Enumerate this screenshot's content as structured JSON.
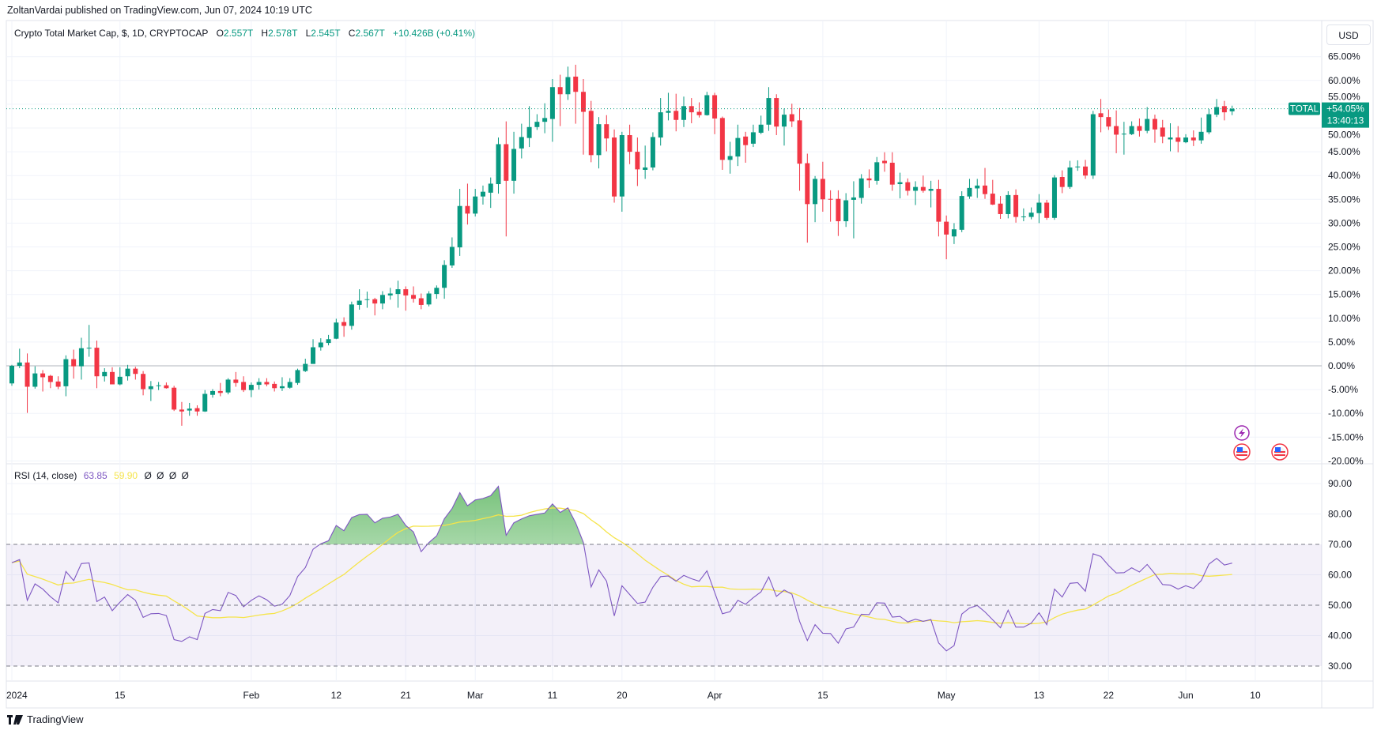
{
  "header": {
    "published": "ZoltanVardai published on TradingView.com, Jun 07, 2024 10:19 UTC"
  },
  "legend": {
    "symbol": "Crypto Total Market Cap, $, 1D, CRYPTOCAP",
    "o_label": "O",
    "o": "2.557T",
    "h_label": "H",
    "h": "2.578T",
    "l_label": "L",
    "l": "2.545T",
    "c_label": "C",
    "c": "2.567T",
    "change": "+10.426B (+0.41%)"
  },
  "rsi_legend": {
    "name": "RSI (14, close)",
    "rsi": "63.85",
    "ma": "59.90",
    "extras": [
      "Ø",
      "Ø",
      "Ø",
      "Ø"
    ]
  },
  "currency_button": "USD",
  "price_tag": {
    "symbol": "TOTAL",
    "value": "+54.05%",
    "countdown": "13:40:13"
  },
  "footer": {
    "brand": "TradingView"
  },
  "colors": {
    "up": "#089981",
    "down": "#f23645",
    "rsi": "#7e57c2",
    "rsi_ma": "#f5e44a",
    "overbought_fill": "#4caf50"
  },
  "icons": {
    "event_icons": [
      "lightning-event-icon",
      "us-flag-event-icon",
      "us-flag-event-icon"
    ]
  },
  "chart_data": {
    "type": "candlestick",
    "price_scale": "percent",
    "grid": true,
    "price_axis": {
      "range": [
        -20,
        67
      ],
      "ticks": [
        {
          "v": 65,
          "label": "65.00%"
        },
        {
          "v": 60,
          "label": "60.00%"
        },
        {
          "v": 55,
          "label": "55.00%"
        },
        {
          "v": 50,
          "label": "50.00%"
        },
        {
          "v": 45,
          "label": "45.00%"
        },
        {
          "v": 40,
          "label": "40.00%"
        },
        {
          "v": 35,
          "label": "35.00%"
        },
        {
          "v": 30,
          "label": "30.00%"
        },
        {
          "v": 25,
          "label": "25.00%"
        },
        {
          "v": 20,
          "label": "20.00%"
        },
        {
          "v": 15,
          "label": "15.00%"
        },
        {
          "v": 10,
          "label": "10.00%"
        },
        {
          "v": 5,
          "label": "5.00%"
        },
        {
          "v": 0,
          "label": "0.00%"
        },
        {
          "v": -5,
          "label": "-5.00%"
        },
        {
          "v": -10,
          "label": "-10.00%"
        },
        {
          "v": -15,
          "label": "-15.00%"
        },
        {
          "v": -20,
          "label": "-20.00%"
        }
      ]
    },
    "rsi_axis": {
      "range": [
        30,
        90
      ],
      "ticks": [
        {
          "v": 90,
          "label": "90.00"
        },
        {
          "v": 80,
          "label": "80.00"
        },
        {
          "v": 70,
          "label": "70.00"
        },
        {
          "v": 60,
          "label": "60.00"
        },
        {
          "v": 50,
          "label": "50.00"
        },
        {
          "v": 40,
          "label": "40.00"
        },
        {
          "v": 30,
          "label": "30.00"
        }
      ],
      "bands": [
        70,
        50,
        30
      ]
    },
    "time_axis": [
      {
        "label": "2024",
        "date": "2024-01-01"
      },
      {
        "label": "15",
        "date": "2024-01-15"
      },
      {
        "label": "Feb",
        "date": "2024-02-01"
      },
      {
        "label": "12",
        "date": "2024-02-12"
      },
      {
        "label": "21",
        "date": "2024-02-21"
      },
      {
        "label": "Mar",
        "date": "2024-03-01"
      },
      {
        "label": "11",
        "date": "2024-03-11"
      },
      {
        "label": "20",
        "date": "2024-03-20"
      },
      {
        "label": "Apr",
        "date": "2024-04-01"
      },
      {
        "label": "15",
        "date": "2024-04-15"
      },
      {
        "label": "May",
        "date": "2024-05-01"
      },
      {
        "label": "13",
        "date": "2024-05-13"
      },
      {
        "label": "22",
        "date": "2024-05-22"
      },
      {
        "label": "Jun",
        "date": "2024-06-01"
      },
      {
        "label": "10",
        "date": "2024-06-10"
      }
    ],
    "candles_ohlc": [
      [
        -3.7,
        0.2,
        -4.2,
        0
      ],
      [
        0,
        3.6,
        -0.5,
        0.7
      ],
      [
        0.7,
        2.6,
        -9.9,
        -4.4
      ],
      [
        -4.4,
        -0.1,
        -4.8,
        -1.6
      ],
      [
        -1.6,
        -0.9,
        -5.4,
        -2.4
      ],
      [
        -2.1,
        -1.9,
        -4.7,
        -3.4
      ],
      [
        -3.3,
        -2.2,
        -4.9,
        -4.4
      ],
      [
        -4.3,
        2.2,
        -6.4,
        1.4
      ],
      [
        1.4,
        3.4,
        -2.7,
        -0.1
      ],
      [
        -0.1,
        5.9,
        -2.9,
        3.7
      ],
      [
        3.8,
        8.6,
        1.9,
        3.8
      ],
      [
        3.8,
        5.3,
        -4.7,
        -2.2
      ],
      [
        -2.2,
        -0.5,
        -3.3,
        -1.3
      ],
      [
        -1.3,
        -0.3,
        -3.9,
        -3.9
      ],
      [
        -3.9,
        -0.3,
        -4.1,
        -2.3
      ],
      [
        -2.2,
        0.2,
        -3.1,
        -0.6
      ],
      [
        -0.6,
        -0.2,
        -2.9,
        -1.7
      ],
      [
        -1.7,
        -1.1,
        -6.2,
        -4.9
      ],
      [
        -4.9,
        -3.2,
        -7.4,
        -4.3
      ],
      [
        -4.2,
        -3.4,
        -5.1,
        -4.1
      ],
      [
        -4.1,
        -3.5,
        -4.8,
        -4.7
      ],
      [
        -4.6,
        -4.2,
        -9.5,
        -9.2
      ],
      [
        -9.2,
        -7.6,
        -12.6,
        -9.6
      ],
      [
        -9.4,
        -7.8,
        -10.5,
        -9.0
      ],
      [
        -8.9,
        -8.3,
        -10.5,
        -9.6
      ],
      [
        -9.6,
        -5.1,
        -9.7,
        -5.9
      ],
      [
        -6.1,
        -4.9,
        -6.7,
        -5.3
      ],
      [
        -5.3,
        -3.6,
        -6.4,
        -5.7
      ],
      [
        -5.6,
        -2.6,
        -6.0,
        -2.9
      ],
      [
        -2.9,
        -1.3,
        -4.4,
        -3.6
      ],
      [
        -3.4,
        -2.2,
        -5.5,
        -5.1
      ],
      [
        -5.1,
        -3.5,
        -6.6,
        -4.0
      ],
      [
        -4.0,
        -2.6,
        -5.0,
        -3.4
      ],
      [
        -3.4,
        -2.6,
        -4.3,
        -3.9
      ],
      [
        -3.8,
        -3.3,
        -5.4,
        -4.7
      ],
      [
        -4.7,
        -2.4,
        -5.3,
        -4.3
      ],
      [
        -4.6,
        -2.6,
        -4.8,
        -3.4
      ],
      [
        -3.6,
        -0.6,
        -4.0,
        -0.9
      ],
      [
        -1.1,
        1.5,
        -1.3,
        0.4
      ],
      [
        0.4,
        5.6,
        0.4,
        3.9
      ],
      [
        3.9,
        5.8,
        3.2,
        4.9
      ],
      [
        4.8,
        6.5,
        4.3,
        5.6
      ],
      [
        5.7,
        9.9,
        5.6,
        9.1
      ],
      [
        9.2,
        10.2,
        6.1,
        8.4
      ],
      [
        8.4,
        13.5,
        7.6,
        12.9
      ],
      [
        12.8,
        16.1,
        11.8,
        13.7
      ],
      [
        13.9,
        15.6,
        12.2,
        14.0
      ],
      [
        14,
        14.3,
        10.6,
        13.1
      ],
      [
        13.1,
        15.7,
        11.9,
        14.9
      ],
      [
        14.8,
        16.4,
        13.9,
        15.2
      ],
      [
        15.1,
        17.9,
        12.2,
        16.1
      ],
      [
        16.1,
        16.7,
        11.6,
        14.8
      ],
      [
        14.9,
        16.7,
        13.3,
        14.1
      ],
      [
        14.2,
        15.2,
        11.9,
        12.8
      ],
      [
        12.9,
        15.7,
        12.5,
        15.2
      ],
      [
        15.1,
        16.9,
        14.1,
        16.4
      ],
      [
        16.4,
        22.2,
        14.1,
        21.2
      ],
      [
        21.1,
        27,
        20.6,
        25
      ],
      [
        24.9,
        37.2,
        23.1,
        33.6
      ],
      [
        33.6,
        38.3,
        29.7,
        32
      ],
      [
        32,
        37.2,
        31.4,
        35.6
      ],
      [
        35.6,
        37.9,
        33.9,
        36.6
      ],
      [
        36.4,
        39.6,
        33.2,
        38.3
      ],
      [
        38.2,
        48,
        36.2,
        46.6
      ],
      [
        46.6,
        51.4,
        27.2,
        38.9
      ],
      [
        38.9,
        49.2,
        36.2,
        45.6
      ],
      [
        45.7,
        50.9,
        43.6,
        48.1
      ],
      [
        47.9,
        54.6,
        46,
        50.2
      ],
      [
        50.2,
        52.9,
        49.6,
        51.3
      ],
      [
        51.3,
        55.2,
        48.9,
        52.1
      ],
      [
        51.9,
        60.3,
        47.1,
        58.6
      ],
      [
        58.6,
        61.2,
        50.4,
        57.1
      ],
      [
        57.1,
        62.9,
        55.9,
        60.7
      ],
      [
        60.8,
        63.3,
        50.9,
        57.6
      ],
      [
        57.6,
        60.3,
        44.4,
        53.4
      ],
      [
        53.6,
        55.7,
        42.8,
        44.3
      ],
      [
        44.3,
        52.3,
        41.5,
        50.8
      ],
      [
        50.8,
        52.7,
        45.1,
        47.8
      ],
      [
        48,
        49.7,
        34.3,
        35.6
      ],
      [
        35.6,
        49.2,
        32.4,
        48.5
      ],
      [
        48.5,
        50.7,
        42.4,
        45
      ],
      [
        45,
        48,
        37.8,
        41.3
      ],
      [
        41.2,
        46.3,
        39.3,
        41.7
      ],
      [
        41.7,
        49.1,
        41.1,
        48.1
      ],
      [
        48,
        56.3,
        46.3,
        53.3
      ],
      [
        53.2,
        57.4,
        51.6,
        53.6
      ],
      [
        53.6,
        57.2,
        49.3,
        51.7
      ],
      [
        51.7,
        56.6,
        50.2,
        54.6
      ],
      [
        54.6,
        56.3,
        51,
        53.3
      ],
      [
        53.4,
        55.4,
        52.2,
        52.7
      ],
      [
        52.7,
        57.6,
        52.6,
        56.9
      ],
      [
        56.9,
        57.4,
        48.7,
        52
      ],
      [
        52.1,
        52.4,
        41.2,
        43.3
      ],
      [
        43.3,
        47.1,
        40.4,
        44.1
      ],
      [
        44,
        50.7,
        42,
        47.9
      ],
      [
        48.2,
        49.2,
        42.7,
        46.4
      ],
      [
        46.7,
        50.7,
        46,
        49.1
      ],
      [
        49,
        52.6,
        48.7,
        50.7
      ],
      [
        50.7,
        58.6,
        49.4,
        56.3
      ],
      [
        56.3,
        57.1,
        48.5,
        50.3
      ],
      [
        50.3,
        54.1,
        46.3,
        52.8
      ],
      [
        52.9,
        55.1,
        50.2,
        51.4
      ],
      [
        51.6,
        54.2,
        36.8,
        42.5
      ],
      [
        42.6,
        44.6,
        25.9,
        34
      ],
      [
        34,
        39.9,
        30.2,
        39.3
      ],
      [
        39.3,
        42.9,
        32.4,
        35
      ],
      [
        35.1,
        36.9,
        30.3,
        35
      ],
      [
        35.1,
        36.9,
        27.3,
        30.4
      ],
      [
        30.4,
        36.3,
        29.2,
        34.8
      ],
      [
        34.9,
        38.8,
        26.8,
        35.4
      ],
      [
        35.3,
        40.3,
        34.1,
        39.4
      ],
      [
        39.4,
        41.3,
        37.4,
        39
      ],
      [
        38.9,
        43.9,
        38.1,
        42.8
      ],
      [
        43.1,
        44.9,
        40.8,
        42.6
      ],
      [
        42.7,
        44.9,
        36.8,
        38.1
      ],
      [
        38.2,
        40.6,
        35.2,
        38.6
      ],
      [
        38.6,
        39.4,
        35.8,
        36.8
      ],
      [
        36.8,
        38.8,
        33.8,
        37.6
      ],
      [
        37.6,
        40,
        36.4,
        36.8
      ],
      [
        36.8,
        38.9,
        33.3,
        37.2
      ],
      [
        37.2,
        39.1,
        27.2,
        30.3
      ],
      [
        30.3,
        31.6,
        22.4,
        27.6
      ],
      [
        27.2,
        30,
        25.6,
        28.7
      ],
      [
        28.6,
        36.7,
        28.1,
        35.7
      ],
      [
        35.6,
        39.3,
        35.1,
        37.4
      ],
      [
        37.3,
        39.3,
        35.3,
        37.9
      ],
      [
        37.9,
        41.6,
        35.1,
        36.1
      ],
      [
        36.2,
        39.1,
        33.8,
        33.9
      ],
      [
        34.1,
        35.7,
        30.9,
        31.9
      ],
      [
        31.9,
        36.7,
        31,
        35.9
      ],
      [
        35.9,
        37.1,
        30.1,
        31.3
      ],
      [
        31.4,
        33.1,
        30.4,
        31.4
      ],
      [
        31.3,
        33.3,
        30.8,
        32.2
      ],
      [
        32.1,
        36.1,
        30,
        34.3
      ],
      [
        34.3,
        34.9,
        30.7,
        31.1
      ],
      [
        31.1,
        40.1,
        30.7,
        39.6
      ],
      [
        39.7,
        41.1,
        36.3,
        37.6
      ],
      [
        37.6,
        43.1,
        37.2,
        41.7
      ],
      [
        41.8,
        43.2,
        41,
        41.9
      ],
      [
        41.9,
        43.3,
        39.3,
        40
      ],
      [
        40,
        53.6,
        39.3,
        52.9
      ],
      [
        53.1,
        56.1,
        49.1,
        52.3
      ],
      [
        52.3,
        53.9,
        49.6,
        50.3
      ],
      [
        50.4,
        53.7,
        44.7,
        48.6
      ],
      [
        48.8,
        51.3,
        44.4,
        48.8
      ],
      [
        48.7,
        51.4,
        48.5,
        50.4
      ],
      [
        50.4,
        52,
        48.2,
        49.4
      ],
      [
        49.4,
        54.4,
        48.9,
        51.9
      ],
      [
        51.9,
        52.8,
        46.9,
        49.7
      ],
      [
        50.1,
        51.7,
        46.8,
        48.2
      ],
      [
        47.6,
        51,
        45.1,
        48
      ],
      [
        48,
        50.4,
        44.9,
        47.1
      ],
      [
        47,
        48.7,
        46.8,
        48
      ],
      [
        48,
        49.5,
        46.2,
        47.4
      ],
      [
        47.4,
        52.2,
        46.7,
        49.2
      ],
      [
        49.1,
        54,
        48.7,
        52.9
      ],
      [
        52.8,
        56.1,
        52.3,
        54.4
      ],
      [
        54.6,
        55.7,
        51.6,
        53.3
      ],
      [
        53.5,
        54.7,
        52.7,
        54.05
      ]
    ],
    "candles_first_date": "2024-01-01",
    "candles_last_date": "2024-06-07",
    "interval": "1D",
    "last_value": 54.05,
    "rsi": [
      64,
      65,
      51.6,
      57,
      55.3,
      52.8,
      50.8,
      61.1,
      58.1,
      63.7,
      63.9,
      51.2,
      52.7,
      48.2,
      51,
      53.5,
      51.6,
      46,
      47.2,
      47.3,
      46.6,
      38.7,
      38.1,
      39.6,
      38.7,
      47.3,
      48.6,
      48.2,
      54.2,
      53.2,
      49.5,
      51.6,
      53.1,
      51.8,
      49.7,
      50.3,
      53.2,
      59.4,
      62.4,
      68.4,
      70.2,
      71.2,
      76.2,
      74.5,
      78.8,
      79.8,
      79.9,
      77.1,
      78.6,
      79,
      79.9,
      76.2,
      74.1,
      67.6,
      70.6,
      72.8,
      78.4,
      81.8,
      87,
      82.7,
      84.6,
      85.1,
      86,
      89.1,
      73,
      77.1,
      78.4,
      79.4,
      79.9,
      80.3,
      83.3,
      80.5,
      82,
      77.1,
      70.6,
      56,
      61.6,
      57.9,
      46.5,
      56.4,
      53.5,
      50.6,
      51,
      55.9,
      59.4,
      59.6,
      57.9,
      59.8,
      58.7,
      57.9,
      61.3,
      54.2,
      47.2,
      47.9,
      51.6,
      50.3,
      52.5,
      54.4,
      59.3,
      52.9,
      55,
      53.6,
      44.7,
      38.4,
      43.6,
      40.8,
      40.7,
      37.5,
      42.2,
      42.8,
      47,
      46.9,
      50.8,
      50.7,
      46.1,
      46.3,
      44.5,
      45.4,
      44.7,
      45.3,
      37.6,
      35,
      36.7,
      47.1,
      49.1,
      49.9,
      47.8,
      45.2,
      42.6,
      48.4,
      42.8,
      42.8,
      44.1,
      47.5,
      43.6,
      55.3,
      52.7,
      57.2,
      57.4,
      54.6,
      66.9,
      66,
      63.1,
      60.6,
      60.7,
      62.3,
      60.9,
      63.4,
      60.3,
      56.8,
      56.6,
      55.3,
      56.4,
      55.5,
      58.1,
      63.5,
      65.4,
      63.2,
      63.85
    ],
    "rsi_ma_length": 14
  }
}
